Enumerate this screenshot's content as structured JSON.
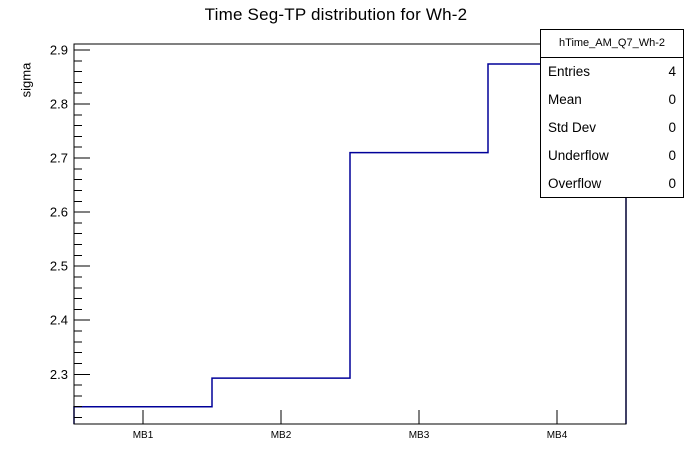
{
  "chart_data": {
    "type": "line",
    "style": "step-histogram",
    "title": "Time Seg-TP distribution for Wh-2",
    "xlabel": "",
    "ylabel": "sigma",
    "categories": [
      "MB1",
      "MB2",
      "MB3",
      "MB4"
    ],
    "values": [
      2.24,
      2.293,
      2.71,
      2.874
    ],
    "ylim": [
      2.208,
      2.911
    ],
    "yticks": [
      2.3,
      2.4,
      2.5,
      2.6,
      2.7,
      2.8,
      2.9
    ],
    "y_minor_step": 0.02,
    "line_color": "#000099",
    "frame_color": "#000000",
    "grid": false,
    "legend": "none"
  },
  "stats_box": {
    "header": "hTime_AM_Q7_Wh-2",
    "rows": [
      {
        "label": "Entries",
        "value": "4"
      },
      {
        "label": "Mean",
        "value": "0"
      },
      {
        "label": "Std Dev",
        "value": "0"
      },
      {
        "label": "Underflow",
        "value": "0"
      },
      {
        "label": "Overflow",
        "value": "0"
      }
    ]
  }
}
